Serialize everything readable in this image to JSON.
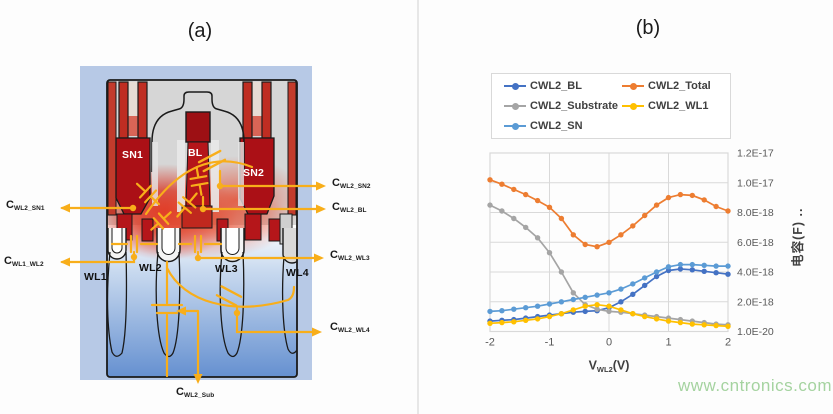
{
  "panel_a": {
    "title": "(a)",
    "region_labels": {
      "sn1": "SN1",
      "bl": "BL",
      "sn2": "SN2",
      "wl1": "WL1",
      "wl2": "WL2",
      "wl3": "WL3",
      "wl4": "WL4"
    },
    "cap_labels": {
      "wl2_sn1": {
        "main": "C",
        "sub": "WL2_SN1"
      },
      "wl1_wl2": {
        "main": "C",
        "sub": "WL1_WL2"
      },
      "wl2_sn2": {
        "main": "C",
        "sub": "WL2_SN2"
      },
      "wl2_bl": {
        "main": "C",
        "sub": "WL2_BL"
      },
      "wl2_wl3": {
        "main": "C",
        "sub": "WL2_WL3"
      },
      "wl2_wl4": {
        "main": "C",
        "sub": "WL2_WL4"
      },
      "wl2_sub": {
        "main": "C",
        "sub": "WL2_Sub"
      }
    },
    "colors": {
      "frame_blue": "#b7c9e6",
      "deep_red": "#ab1016",
      "substrate_blue": "#6590d0",
      "gold": "#F8AE1A"
    }
  },
  "panel_b": {
    "title": "(b)"
  },
  "chart_data": {
    "type": "line",
    "title": "",
    "xlabel_main": "V",
    "xlabel_sub": "WL2",
    "xlabel_unit": "(V)",
    "ylabel": "电容(F)",
    "ylabel_overflow": "..",
    "xlim": [
      -2,
      2
    ],
    "ylim": [
      0,
      1.2e-17
    ],
    "grid": true,
    "legend_position": "top",
    "x_ticks": [
      "-2",
      "-1",
      "0",
      "1",
      "2"
    ],
    "y_ticks": [
      "1.2E-17",
      "1.0E-17",
      "8.0E-18",
      "6.0E-18",
      "4.0E-18",
      "2.0E-18",
      "1.0E-20"
    ],
    "x": [
      -2.0,
      -1.8,
      -1.6,
      -1.4,
      -1.2,
      -1.0,
      -0.8,
      -0.6,
      -0.4,
      -0.2,
      0.0,
      0.2,
      0.4,
      0.6,
      0.8,
      1.0,
      1.2,
      1.4,
      1.6,
      1.8,
      2.0
    ],
    "series": [
      {
        "name": "CWL2_BL",
        "color": "#4472C4",
        "values": [
          7e-19,
          7.5e-19,
          8e-19,
          9e-19,
          1e-18,
          1.1e-18,
          1.2e-18,
          1.3e-18,
          1.35e-18,
          1.4e-18,
          1.6e-18,
          2e-18,
          2.5e-18,
          3.1e-18,
          3.7e-18,
          4.1e-18,
          4.2e-18,
          4.15e-18,
          4.05e-18,
          3.95e-18,
          3.85e-18
        ]
      },
      {
        "name": "CWL2_Total",
        "color": "#ED7D31",
        "values": [
          1.02e-17,
          9.9e-18,
          9.55e-18,
          9.2e-18,
          8.8e-18,
          8.35e-18,
          7.6e-18,
          6.5e-18,
          5.85e-18,
          5.7e-18,
          6e-18,
          6.5e-18,
          7.1e-18,
          7.8e-18,
          8.5e-18,
          9e-18,
          9.2e-18,
          9.15e-18,
          8.85e-18,
          8.4e-18,
          8.1e-18
        ]
      },
      {
        "name": "CWL2_Substrate",
        "color": "#A5A5A5",
        "values": [
          8.5e-18,
          8.1e-18,
          7.6e-18,
          7e-18,
          6.3e-18,
          5.3e-18,
          4e-18,
          2.6e-18,
          1.8e-18,
          1.5e-18,
          1.35e-18,
          1.3e-18,
          1.2e-18,
          1.1e-18,
          1e-18,
          9e-19,
          8e-19,
          7e-19,
          6e-19,
          5e-19,
          4.5e-19
        ]
      },
      {
        "name": "CWL2_WL1",
        "color": "#FFC000",
        "values": [
          5.5e-19,
          6e-19,
          6.5e-19,
          7.5e-19,
          8.5e-19,
          1e-18,
          1.2e-18,
          1.45e-18,
          1.7e-18,
          1.8e-18,
          1.7e-18,
          1.45e-18,
          1.2e-18,
          1e-18,
          8.5e-19,
          7e-19,
          6e-19,
          5e-19,
          4.5e-19,
          4e-19,
          3.5e-19
        ]
      },
      {
        "name": "CWL2_SN",
        "color": "#5B9BD5",
        "values": [
          1.35e-18,
          1.4e-18,
          1.5e-18,
          1.6e-18,
          1.7e-18,
          1.85e-18,
          2e-18,
          2.15e-18,
          2.3e-18,
          2.45e-18,
          2.6e-18,
          2.85e-18,
          3.2e-18,
          3.6e-18,
          4e-18,
          4.35e-18,
          4.5e-18,
          4.5e-18,
          4.45e-18,
          4.4e-18,
          4.4e-18
        ]
      }
    ]
  },
  "watermark": "www.cntronics.com"
}
